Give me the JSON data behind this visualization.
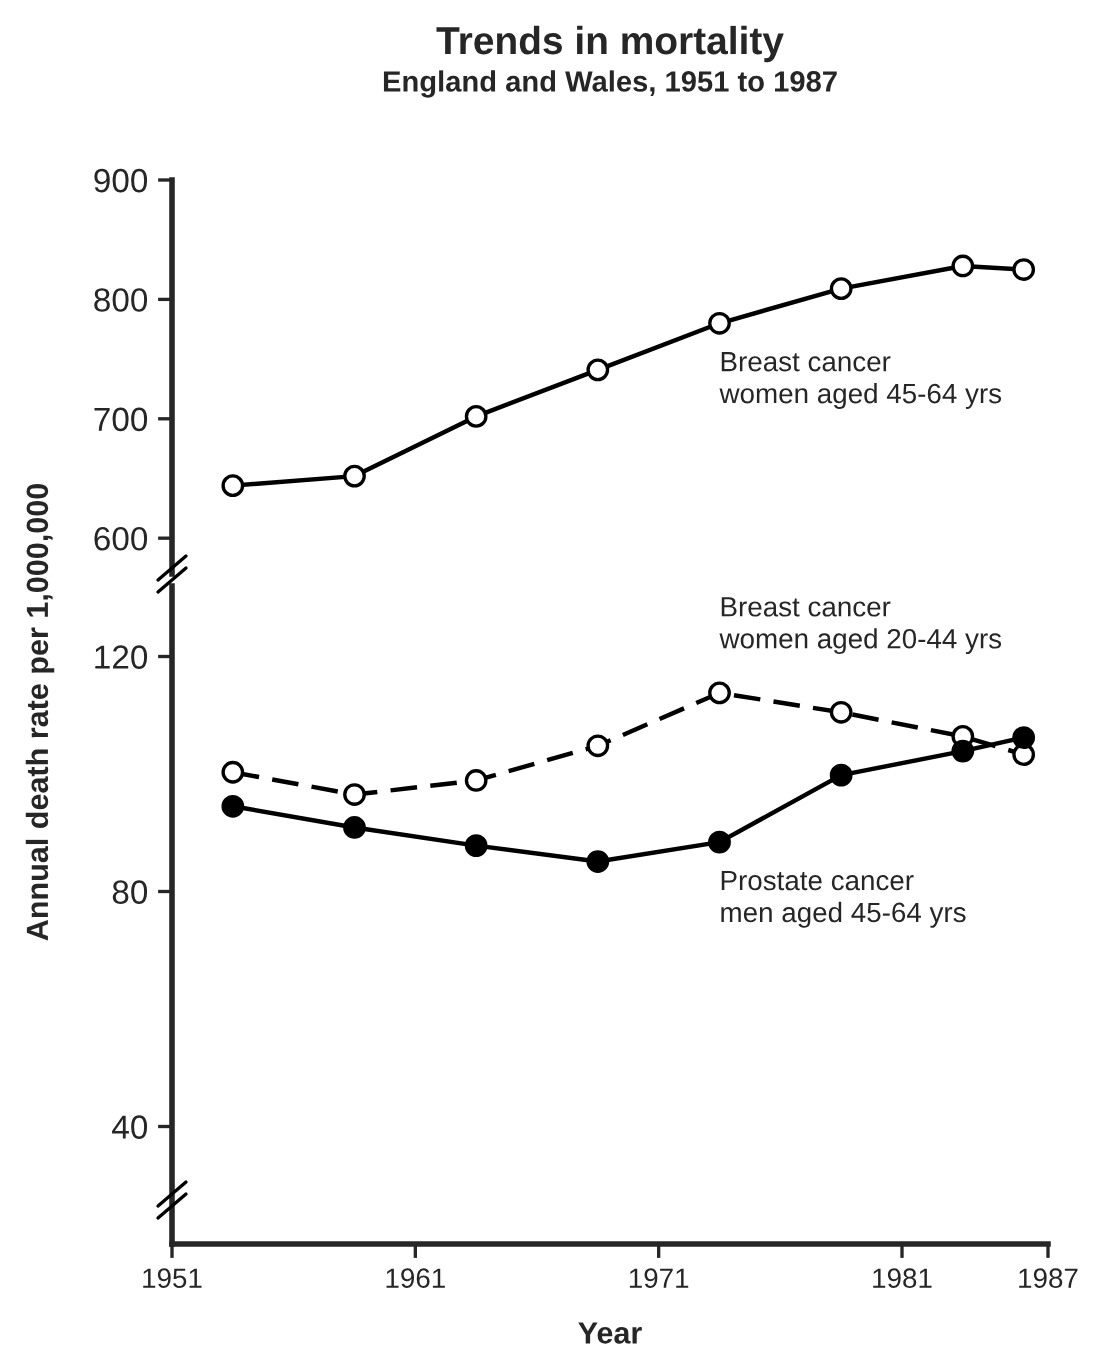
{
  "chart_data": [
    {
      "type": "line",
      "title": "Trends in mortality",
      "subtitle": "England and Wales, 1951 to 1987",
      "xlim": [
        1951,
        1987
      ],
      "ylim": [
        570,
        900
      ],
      "yticks": [
        600,
        700,
        800,
        900
      ],
      "tick_labels": "y",
      "grid": false,
      "legend": false,
      "marker": "circle",
      "series": [
        {
          "name": "Breast cancer\nwomen aged 45-64 yrs",
          "color": "#000000",
          "line_style": "solid",
          "x": [
            1953.5,
            1958.5,
            1963.5,
            1968.5,
            1973.5,
            1978.5,
            1983.5,
            1986
          ],
          "values": [
            644,
            652,
            702,
            741,
            780,
            809,
            828,
            825
          ]
        }
      ]
    },
    {
      "type": "line",
      "xlabel": "Year",
      "ylabel": "Annual death rate per 1,000,000",
      "xlim": [
        1951,
        1987
      ],
      "xticks": [
        1951,
        1961,
        1971,
        1981,
        1987
      ],
      "ylim": [
        20,
        132
      ],
      "yticks": [
        40,
        80,
        120
      ],
      "grid": false,
      "legend": false,
      "marker": "circle",
      "series": [
        {
          "name": "Breast cancer\nwomen aged 20-44 yrs",
          "color": "#000000",
          "line_style": "dashed",
          "x": [
            1953.5,
            1958.5,
            1963.5,
            1968.5,
            1973.5,
            1978.5,
            1983.5,
            1986
          ],
          "values": [
            100.3,
            96.5,
            98.9,
            104.8,
            113.8,
            110.5,
            106.4,
            103.3
          ]
        },
        {
          "name": "Prostate cancer\nmen aged 45-64 yrs",
          "color": "#000000",
          "line_style": "solid",
          "x": [
            1953.5,
            1958.5,
            1963.5,
            1968.5,
            1973.5,
            1978.5,
            1983.5,
            1986
          ],
          "values": [
            94.5,
            90.9,
            87.8,
            85.1,
            88.4,
            99.8,
            103.9,
            106.2
          ]
        }
      ]
    }
  ]
}
